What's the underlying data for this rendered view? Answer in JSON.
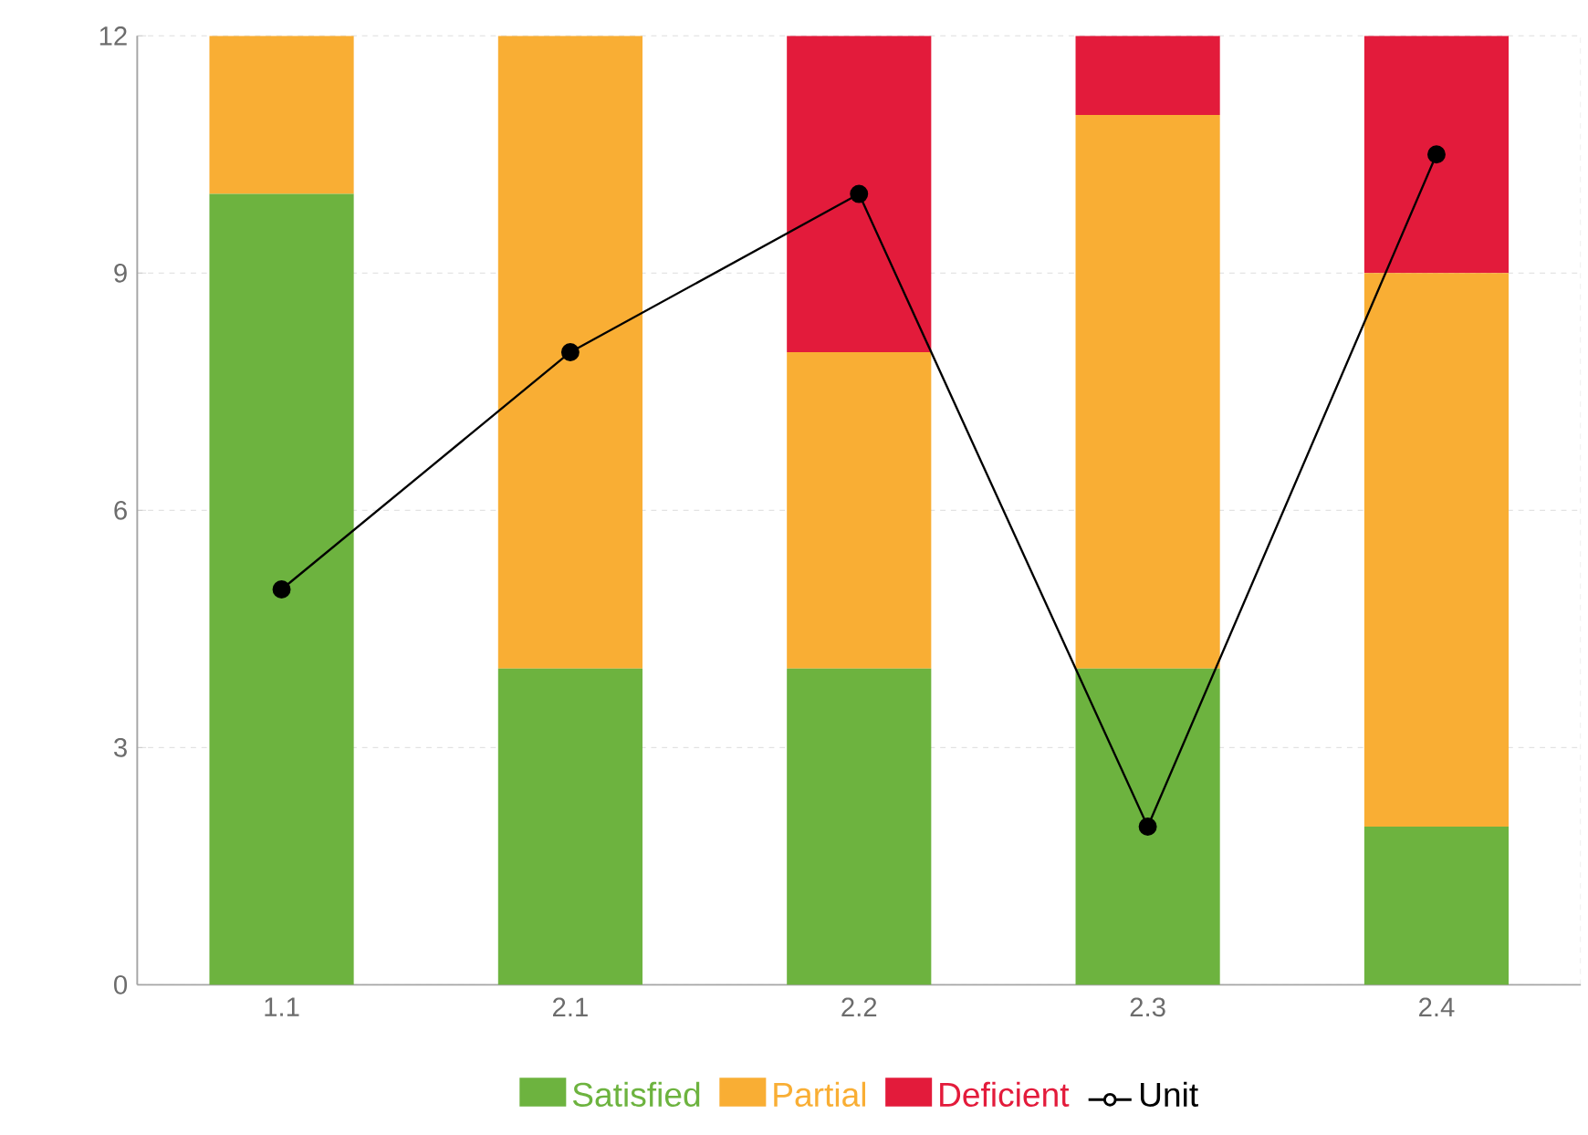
{
  "chart_data": {
    "type": "bar",
    "stacked": true,
    "categories": [
      "1.1",
      "2.1",
      "2.2",
      "2.3",
      "2.4"
    ],
    "series": [
      {
        "name": "Satisfied",
        "color": "#6db33f",
        "values": [
          10,
          4,
          4,
          4,
          2
        ]
      },
      {
        "name": "Partial",
        "color": "#f9ae34",
        "values": [
          2,
          8,
          4,
          7,
          7
        ]
      },
      {
        "name": "Deficient",
        "color": "#e31b3b",
        "values": [
          0,
          0,
          4,
          1,
          3
        ]
      },
      {
        "name": "Unit",
        "color": "#000000",
        "type": "line",
        "marker": "circle",
        "values": [
          5,
          8,
          10,
          2,
          10.5
        ]
      }
    ],
    "ylim": [
      0,
      12
    ],
    "yticks": [
      0,
      3,
      6,
      9,
      12
    ],
    "grid": "y",
    "legend": "bottom"
  }
}
